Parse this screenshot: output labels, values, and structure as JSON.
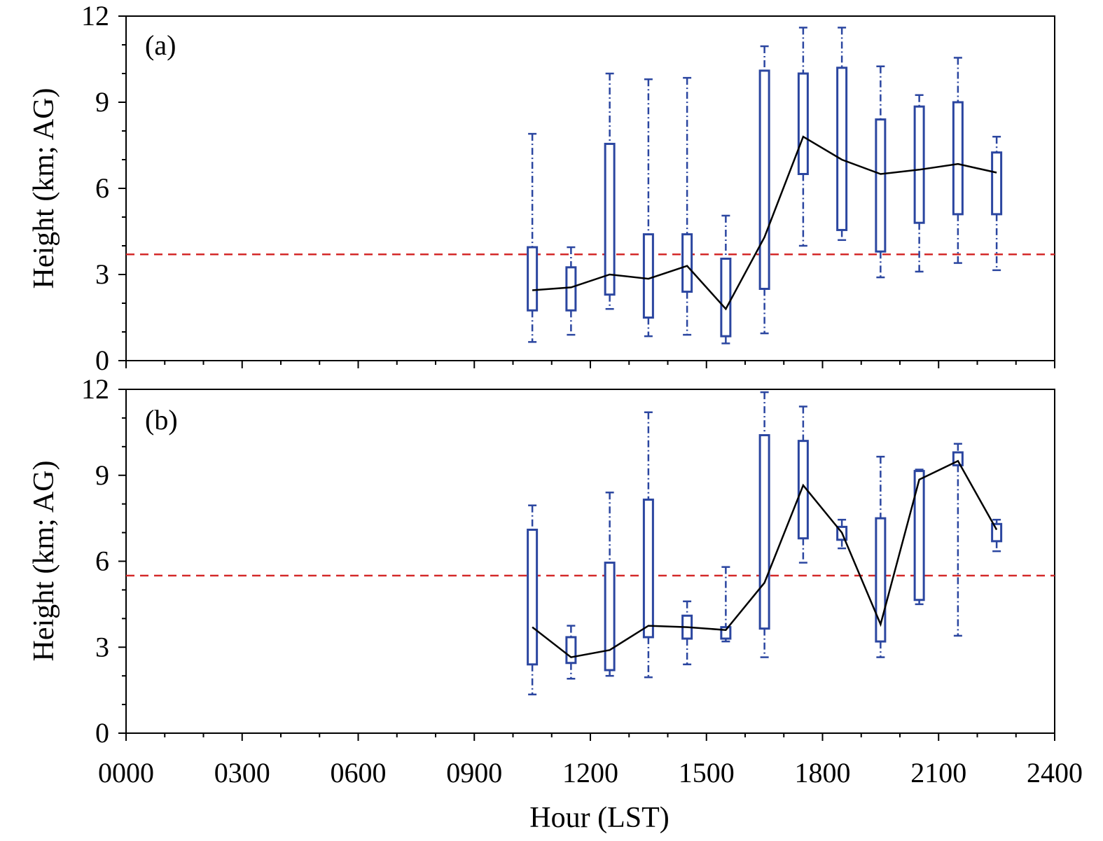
{
  "chart_data": {
    "type": "box",
    "shared_x": {
      "label": "Hour (LST)",
      "range": [
        0,
        24
      ],
      "tick_labels": [
        "0000",
        "0300",
        "0600",
        "0900",
        "1200",
        "1500",
        "1800",
        "2100",
        "2400"
      ],
      "tick_values": [
        0,
        3,
        6,
        9,
        12,
        15,
        18,
        21,
        24
      ],
      "minor_tick_step": 1
    },
    "colors": {
      "box": "#2b46a0",
      "median_line": "#000000",
      "reference_line": "#d42a2a"
    },
    "panels": [
      {
        "label": "(a)",
        "ylabel": "Height (km; AG)",
        "ylim": [
          0,
          12
        ],
        "y_tick_labels": [
          "0",
          "3",
          "6",
          "9",
          "12"
        ],
        "y_tick_values": [
          0,
          3,
          6,
          9,
          12
        ],
        "reference_line": 3.7,
        "boxes": [
          {
            "hour": 10.5,
            "whisker_low": 0.65,
            "q1": 1.75,
            "q3": 3.95,
            "whisker_high": 7.9
          },
          {
            "hour": 11.5,
            "whisker_low": 0.9,
            "q1": 1.75,
            "q3": 3.25,
            "whisker_high": 3.95
          },
          {
            "hour": 12.5,
            "whisker_low": 1.8,
            "q1": 2.3,
            "q3": 7.55,
            "whisker_high": 10.0
          },
          {
            "hour": 13.5,
            "whisker_low": 0.85,
            "q1": 1.5,
            "q3": 4.4,
            "whisker_high": 9.8
          },
          {
            "hour": 14.5,
            "whisker_low": 0.9,
            "q1": 2.4,
            "q3": 4.4,
            "whisker_high": 9.85
          },
          {
            "hour": 15.5,
            "whisker_low": 0.6,
            "q1": 0.85,
            "q3": 3.55,
            "whisker_high": 5.05
          },
          {
            "hour": 16.5,
            "whisker_low": 0.95,
            "q1": 2.5,
            "q3": 10.1,
            "whisker_high": 10.95
          },
          {
            "hour": 17.5,
            "whisker_low": 4.0,
            "q1": 6.5,
            "q3": 10.0,
            "whisker_high": 11.6
          },
          {
            "hour": 18.5,
            "whisker_low": 4.2,
            "q1": 4.55,
            "q3": 10.2,
            "whisker_high": 11.6
          },
          {
            "hour": 19.5,
            "whisker_low": 2.9,
            "q1": 3.8,
            "q3": 8.4,
            "whisker_high": 10.25
          },
          {
            "hour": 20.5,
            "whisker_low": 3.1,
            "q1": 4.8,
            "q3": 8.85,
            "whisker_high": 9.25
          },
          {
            "hour": 21.5,
            "whisker_low": 3.4,
            "q1": 5.1,
            "q3": 9.0,
            "whisker_high": 10.55
          },
          {
            "hour": 22.5,
            "whisker_low": 3.15,
            "q1": 5.1,
            "q3": 7.25,
            "whisker_high": 7.8
          }
        ],
        "median_line": {
          "x": [
            10.5,
            11.5,
            12.5,
            13.5,
            14.5,
            15.5,
            16.5,
            17.5,
            18.5,
            19.5,
            20.5,
            21.5,
            22.5
          ],
          "y": [
            2.45,
            2.55,
            3.0,
            2.85,
            3.3,
            1.8,
            4.3,
            7.8,
            7.0,
            6.5,
            6.65,
            6.85,
            6.55
          ]
        }
      },
      {
        "label": "(b)",
        "ylabel": "Height (km; AG)",
        "ylim": [
          0,
          12
        ],
        "y_tick_labels": [
          "0",
          "3",
          "6",
          "9",
          "12"
        ],
        "y_tick_values": [
          0,
          3,
          6,
          9,
          12
        ],
        "reference_line": 5.5,
        "boxes": [
          {
            "hour": 10.5,
            "whisker_low": 1.35,
            "q1": 2.4,
            "q3": 7.1,
            "whisker_high": 7.95
          },
          {
            "hour": 11.5,
            "whisker_low": 1.9,
            "q1": 2.45,
            "q3": 3.35,
            "whisker_high": 3.75
          },
          {
            "hour": 12.5,
            "whisker_low": 2.0,
            "q1": 2.2,
            "q3": 5.95,
            "whisker_high": 8.4
          },
          {
            "hour": 13.5,
            "whisker_low": 1.95,
            "q1": 3.35,
            "q3": 8.15,
            "whisker_high": 11.2
          },
          {
            "hour": 14.5,
            "whisker_low": 2.4,
            "q1": 3.3,
            "q3": 4.1,
            "whisker_high": 4.6
          },
          {
            "hour": 15.5,
            "whisker_low": 3.2,
            "q1": 3.3,
            "q3": 3.7,
            "whisker_high": 5.8
          },
          {
            "hour": 16.5,
            "whisker_low": 2.65,
            "q1": 3.65,
            "q3": 10.4,
            "whisker_high": 11.9
          },
          {
            "hour": 17.5,
            "whisker_low": 5.95,
            "q1": 6.8,
            "q3": 10.2,
            "whisker_high": 11.4
          },
          {
            "hour": 18.5,
            "whisker_low": 6.45,
            "q1": 6.75,
            "q3": 7.2,
            "whisker_high": 7.45
          },
          {
            "hour": 19.5,
            "whisker_low": 2.65,
            "q1": 3.2,
            "q3": 7.5,
            "whisker_high": 9.65
          },
          {
            "hour": 20.5,
            "whisker_low": 4.5,
            "q1": 4.65,
            "q3": 9.15,
            "whisker_high": 9.2
          },
          {
            "hour": 21.5,
            "whisker_low": 3.4,
            "q1": 9.35,
            "q3": 9.8,
            "whisker_high": 10.1
          },
          {
            "hour": 22.5,
            "whisker_low": 6.35,
            "q1": 6.7,
            "q3": 7.3,
            "whisker_high": 7.45
          }
        ],
        "median_line": {
          "x": [
            10.5,
            11.5,
            12.5,
            13.5,
            14.5,
            15.5,
            16.5,
            17.5,
            18.5,
            19.5,
            20.5,
            21.5,
            22.5
          ],
          "y": [
            3.7,
            2.65,
            2.9,
            3.75,
            3.7,
            3.6,
            5.25,
            8.65,
            7.0,
            3.8,
            8.85,
            9.5,
            7.1
          ]
        }
      }
    ]
  }
}
